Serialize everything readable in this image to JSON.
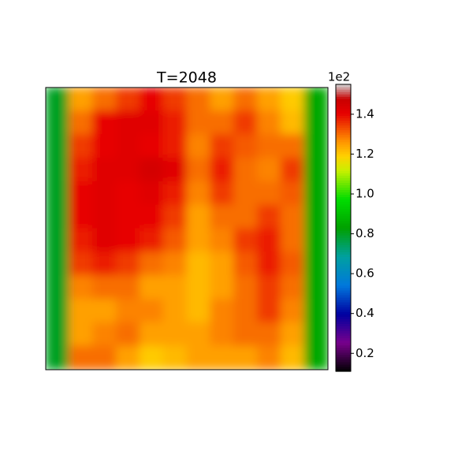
{
  "chart_data": {
    "type": "heatmap",
    "title": "T=2048",
    "colormap": "nipy_spectral",
    "z": [
      [
        0.8,
        1.25,
        1.3,
        1.35,
        1.4,
        1.35,
        1.3,
        1.25,
        1.3,
        1.25,
        1.2,
        0.85
      ],
      [
        0.8,
        1.3,
        1.4,
        1.42,
        1.42,
        1.38,
        1.3,
        1.3,
        1.35,
        1.28,
        1.22,
        0.85
      ],
      [
        0.8,
        1.35,
        1.4,
        1.42,
        1.4,
        1.38,
        1.28,
        1.35,
        1.32,
        1.3,
        1.3,
        0.85
      ],
      [
        0.8,
        1.38,
        1.42,
        1.42,
        1.45,
        1.42,
        1.3,
        1.38,
        1.3,
        1.28,
        1.35,
        0.85
      ],
      [
        0.8,
        1.4,
        1.42,
        1.4,
        1.42,
        1.38,
        1.28,
        1.35,
        1.3,
        1.3,
        1.32,
        0.85
      ],
      [
        0.8,
        1.4,
        1.42,
        1.4,
        1.4,
        1.35,
        1.25,
        1.3,
        1.3,
        1.35,
        1.3,
        0.85
      ],
      [
        0.8,
        1.38,
        1.42,
        1.4,
        1.38,
        1.32,
        1.25,
        1.28,
        1.35,
        1.38,
        1.3,
        0.85
      ],
      [
        0.8,
        1.35,
        1.38,
        1.35,
        1.3,
        1.28,
        1.22,
        1.25,
        1.32,
        1.38,
        1.32,
        0.85
      ],
      [
        0.8,
        1.28,
        1.3,
        1.3,
        1.25,
        1.25,
        1.22,
        1.25,
        1.3,
        1.35,
        1.3,
        0.85
      ],
      [
        0.8,
        1.25,
        1.25,
        1.28,
        1.28,
        1.25,
        1.22,
        1.28,
        1.3,
        1.35,
        1.28,
        0.85
      ],
      [
        0.8,
        1.25,
        1.28,
        1.3,
        1.25,
        1.25,
        1.25,
        1.28,
        1.3,
        1.3,
        1.25,
        0.85
      ],
      [
        0.8,
        1.3,
        1.3,
        1.25,
        1.2,
        1.22,
        1.25,
        1.25,
        1.25,
        1.28,
        1.22,
        0.85
      ]
    ],
    "colorbar_offset": "1e2",
    "clim": [
      0.11,
      1.55
    ],
    "cticks": [
      0.2,
      0.4,
      0.6,
      0.8,
      {
        "value": 1,
        "label": "1.0"
      },
      1.2,
      1.4
    ]
  }
}
